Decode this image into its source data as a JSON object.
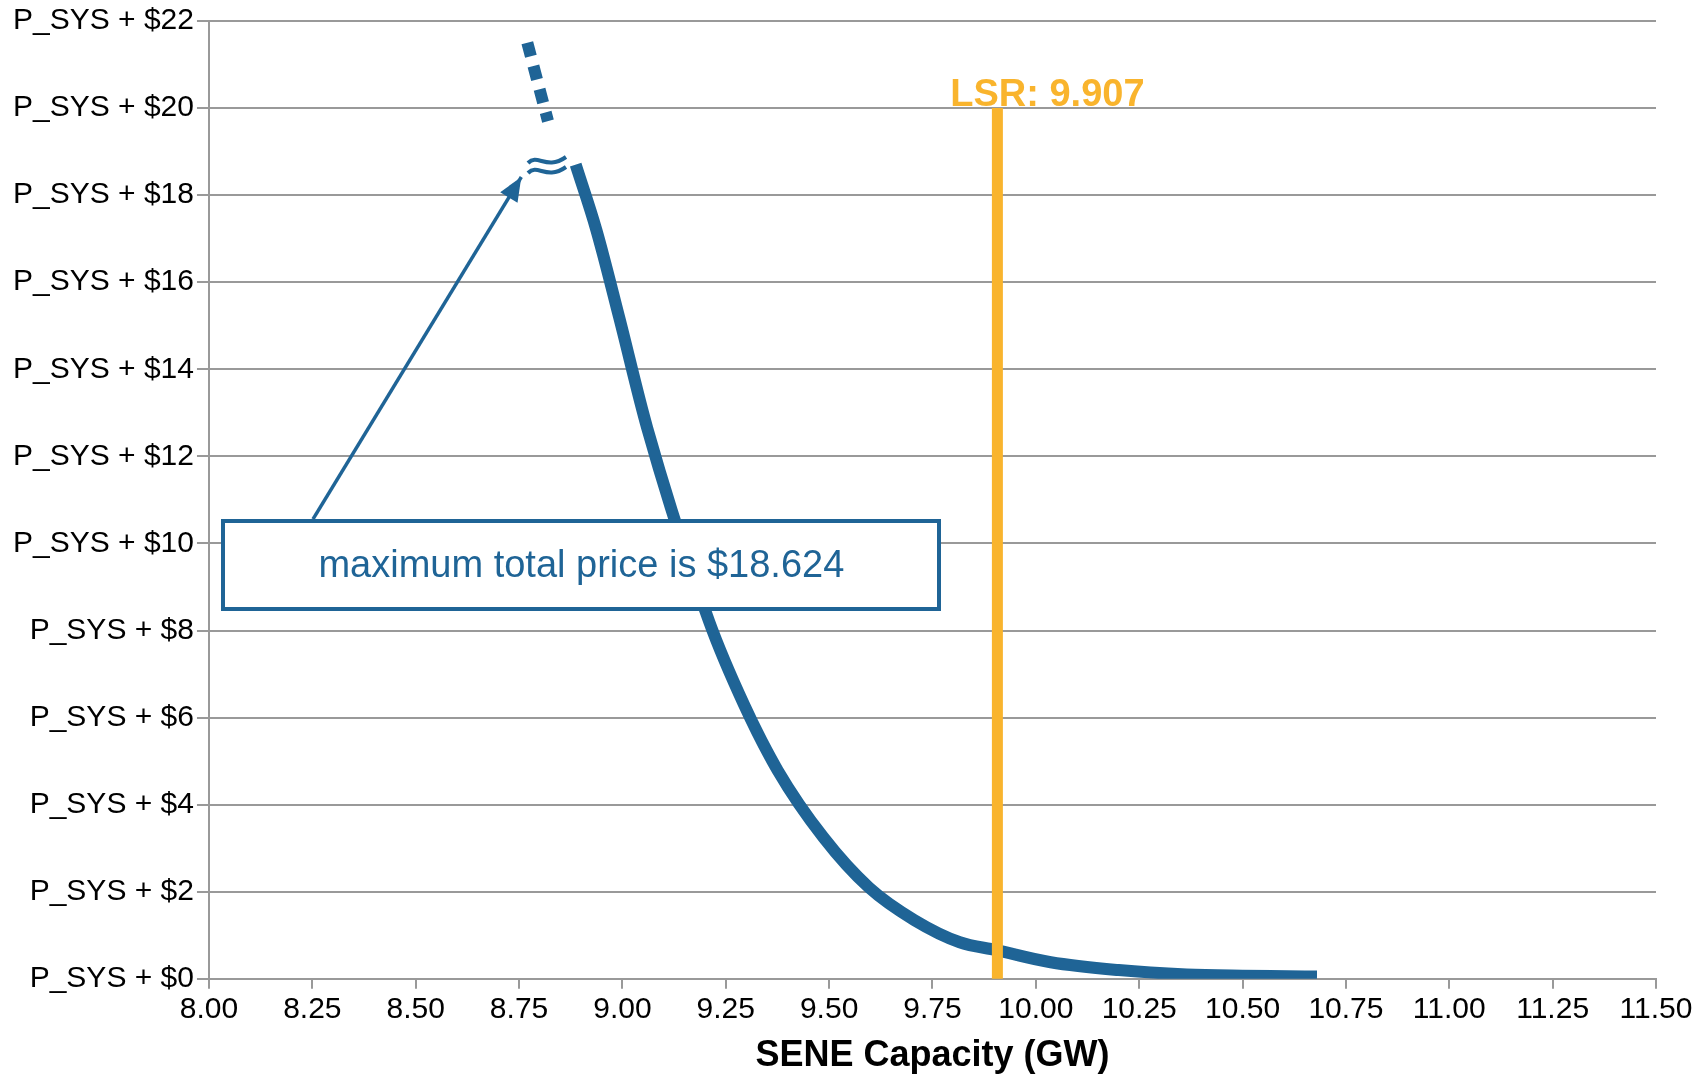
{
  "chart_data": {
    "type": "line",
    "xlabel": "SENE Capacity (GW)",
    "xlim": [
      8,
      11.5
    ],
    "xticks": [
      {
        "value": 8,
        "label": "8.00"
      },
      {
        "value": 8.25,
        "label": "8.25"
      },
      {
        "value": 8.5,
        "label": "8.50"
      },
      {
        "value": 8.75,
        "label": "8.75"
      },
      {
        "value": 9,
        "label": "9.00"
      },
      {
        "value": 9.25,
        "label": "9.25"
      },
      {
        "value": 9.5,
        "label": "9.50"
      },
      {
        "value": 9.75,
        "label": "9.75"
      },
      {
        "value": 10,
        "label": "10.00"
      },
      {
        "value": 10.25,
        "label": "10.25"
      },
      {
        "value": 10.5,
        "label": "10.50"
      },
      {
        "value": 10.75,
        "label": "10.75"
      },
      {
        "value": 11,
        "label": "11.00"
      },
      {
        "value": 11.25,
        "label": "11.25"
      },
      {
        "value": 11.5,
        "label": "11.50"
      }
    ],
    "ylim": [
      0,
      22
    ],
    "yticks": [
      {
        "value": 0,
        "label": "P_SYS + $0"
      },
      {
        "value": 2,
        "label": "P_SYS + $2"
      },
      {
        "value": 4,
        "label": "P_SYS + $4"
      },
      {
        "value": 6,
        "label": "P_SYS + $6"
      },
      {
        "value": 8,
        "label": "P_SYS + $8"
      },
      {
        "value": 10,
        "label": "P_SYS + $10"
      },
      {
        "value": 12,
        "label": "P_SYS + $12"
      },
      {
        "value": 14,
        "label": "P_SYS + $14"
      },
      {
        "value": 16,
        "label": "P_SYS + $16"
      },
      {
        "value": 18,
        "label": "P_SYS + $18"
      },
      {
        "value": 20,
        "label": "P_SYS + $20"
      },
      {
        "value": 22,
        "label": "P_SYS + $22"
      }
    ],
    "grid": "y",
    "legend": false,
    "marker": "none",
    "series": [
      {
        "color": "#1f6496",
        "line_style": "solid",
        "x": [
          8.887,
          8.937,
          8.992,
          9.06,
          9.21,
          9.294,
          9.376,
          9.486,
          9.596,
          9.706,
          9.816,
          9.904,
          10.036,
          10.2,
          10.365,
          10.5,
          10.68
        ],
        "values": [
          18.7,
          17.2,
          15.2,
          12.65,
          8.2,
          6.3,
          4.78,
          3.25,
          2.1,
          1.35,
          0.84,
          0.66,
          0.38,
          0.2,
          0.1,
          0.07,
          0.05
        ]
      },
      {
        "color": "#1f6496",
        "line_style": "dashed",
        "x": [
          8.77,
          8.82
        ],
        "values": [
          21.5,
          19.7
        ]
      }
    ],
    "ref_lines": [
      {
        "axis": "x",
        "value": 9.907,
        "label": "LSR: 9.907",
        "color": "#f9b42d"
      }
    ],
    "annotations": [
      "maximum total price is $18.624"
    ]
  }
}
